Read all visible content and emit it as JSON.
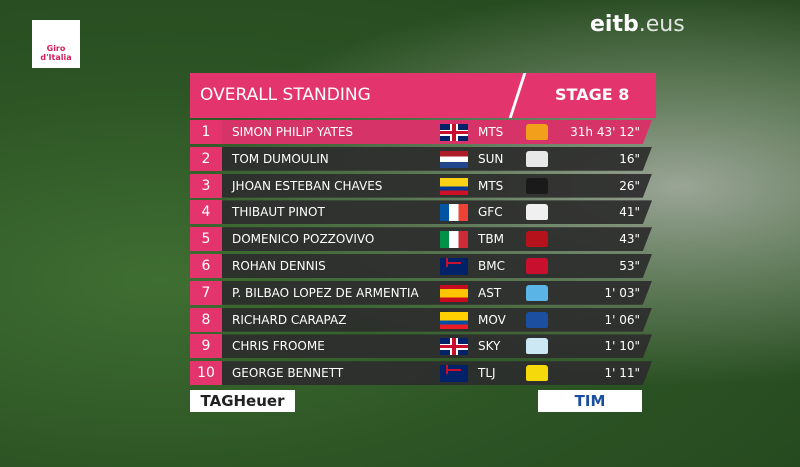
{
  "logos": {
    "giro": "Giro d'Italia",
    "broadcaster": "eitb",
    "broadcaster_suffix": ".eus",
    "sponsor_left": "TAGHeuer",
    "sponsor_right": "TIM"
  },
  "header": {
    "title": "OVERALL STANDING",
    "stage": "STAGE 8"
  },
  "table": {
    "rows": [
      [
        1,
        "SIMON PHILIP YATES",
        "MTS",
        "31h 43' 12\""
      ],
      [
        2,
        "TOM DUMOULIN",
        "SUN",
        "16\""
      ],
      [
        3,
        "JHOAN ESTEBAN CHAVES",
        "MTS",
        "26\""
      ],
      [
        4,
        "THIBAUT PINOT",
        "GFC",
        "41\""
      ],
      [
        5,
        "DOMENICO POZZOVIVO",
        "TBM",
        "43\""
      ],
      [
        6,
        "ROHAN DENNIS",
        "BMC",
        "53\""
      ],
      [
        7,
        "P. BILBAO LOPEZ DE ARMENTIA",
        "AST",
        "1' 03\""
      ],
      [
        8,
        "RICHARD CARAPAZ",
        "MOV",
        "1' 06\""
      ],
      [
        9,
        "CHRIS FROOME",
        "SKY",
        "1' 10\""
      ],
      [
        10,
        "GEORGE BENNETT",
        "TLJ",
        "1' 11\""
      ]
    ]
  }
}
